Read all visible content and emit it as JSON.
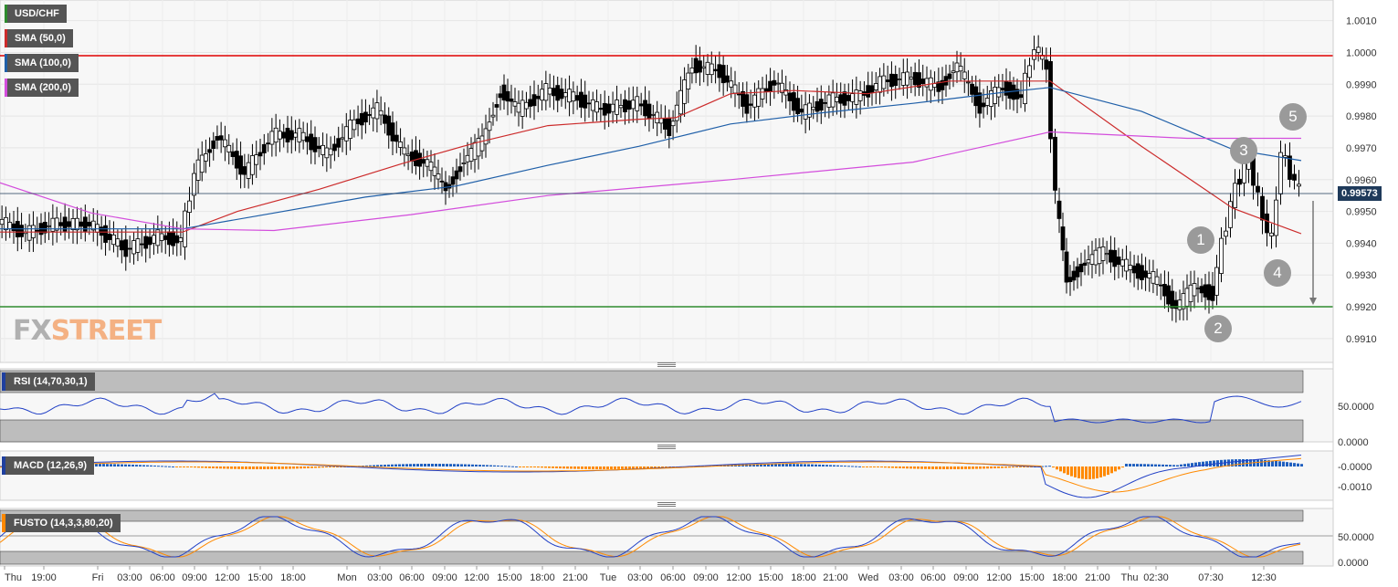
{
  "instrument": "USD/CHF",
  "legends": [
    {
      "label": "USD/CHF",
      "color": "#2e8b2e"
    },
    {
      "label": "SMA (50,0)",
      "color": "#cc2b2b"
    },
    {
      "label": "SMA (100,0)",
      "color": "#1f5fa8"
    },
    {
      "label": "SMA (200,0)",
      "color": "#d34ddc"
    }
  ],
  "current_price": "0.99573",
  "logo": {
    "part1": "FX",
    "part2": "STREET"
  },
  "annotations": [
    "1",
    "2",
    "3",
    "4",
    "5"
  ],
  "indicators": {
    "rsi": {
      "label": "RSI (14,70,30,1)",
      "color": "#1f3f9f",
      "ticks": [
        "50.0000",
        "0.0000"
      ]
    },
    "macd": {
      "label": "MACD (12,26,9)",
      "color": "#1f3f9f",
      "ticks": [
        "-0.0000",
        "-0.0010"
      ]
    },
    "fusto": {
      "label": "FUSTO (14,3,3,80,20)",
      "color": "#ff8800",
      "ticks": [
        "50.0000",
        "0.0000"
      ]
    }
  },
  "chart_data": {
    "type": "line",
    "title": "USD/CHF",
    "x_ticks": [
      "Thu",
      "19:00",
      "Fri",
      "03:00",
      "06:00",
      "09:00",
      "12:00",
      "15:00",
      "18:00",
      "Mon",
      "03:00",
      "06:00",
      "09:00",
      "12:00",
      "15:00",
      "18:00",
      "21:00",
      "Tue",
      "03:00",
      "06:00",
      "09:00",
      "12:00",
      "15:00",
      "18:00",
      "21:00",
      "Wed",
      "03:00",
      "06:00",
      "09:00",
      "12:00",
      "15:00",
      "18:00",
      "21:00",
      "Thu",
      "02:30",
      "07:30",
      "12:30"
    ],
    "y_ticks": [
      "1.0010",
      "1.0000",
      "0.9990",
      "0.9980",
      "0.9970",
      "0.9960",
      "0.9950",
      "0.9940",
      "0.9930",
      "0.9920",
      "0.9910"
    ],
    "ylim": [
      0.99025,
      1.00165
    ],
    "grid": true,
    "resistance": 0.9999,
    "support": 0.992,
    "close_points": [
      {
        "x": 0,
        "y": 0.9947
      },
      {
        "x": 30,
        "y": 0.9943
      },
      {
        "x": 60,
        "y": 0.9946
      },
      {
        "x": 100,
        "y": 0.9946
      },
      {
        "x": 140,
        "y": 0.9938
      },
      {
        "x": 175,
        "y": 0.9942
      },
      {
        "x": 200,
        "y": 0.9941
      },
      {
        "x": 215,
        "y": 0.9962
      },
      {
        "x": 240,
        "y": 0.9974
      },
      {
        "x": 270,
        "y": 0.9962
      },
      {
        "x": 300,
        "y": 0.9974
      },
      {
        "x": 330,
        "y": 0.9974
      },
      {
        "x": 360,
        "y": 0.9968
      },
      {
        "x": 390,
        "y": 0.9978
      },
      {
        "x": 415,
        "y": 0.9982
      },
      {
        "x": 445,
        "y": 0.9968
      },
      {
        "x": 470,
        "y": 0.9965
      },
      {
        "x": 490,
        "y": 0.9957
      },
      {
        "x": 510,
        "y": 0.9966
      },
      {
        "x": 530,
        "y": 0.9972
      },
      {
        "x": 550,
        "y": 0.9988
      },
      {
        "x": 570,
        "y": 0.9982
      },
      {
        "x": 600,
        "y": 0.9988
      },
      {
        "x": 630,
        "y": 0.9986
      },
      {
        "x": 660,
        "y": 0.9982
      },
      {
        "x": 700,
        "y": 0.9984
      },
      {
        "x": 735,
        "y": 0.9976
      },
      {
        "x": 760,
        "y": 0.9996
      },
      {
        "x": 790,
        "y": 0.9994
      },
      {
        "x": 820,
        "y": 0.9983
      },
      {
        "x": 850,
        "y": 0.9991
      },
      {
        "x": 880,
        "y": 0.9981
      },
      {
        "x": 910,
        "y": 0.9985
      },
      {
        "x": 940,
        "y": 0.9986
      },
      {
        "x": 970,
        "y": 0.9991
      },
      {
        "x": 1000,
        "y": 0.9992
      },
      {
        "x": 1030,
        "y": 0.9989
      },
      {
        "x": 1050,
        "y": 0.9996
      },
      {
        "x": 1075,
        "y": 0.9983
      },
      {
        "x": 1100,
        "y": 0.9989
      },
      {
        "x": 1120,
        "y": 0.9986
      },
      {
        "x": 1135,
        "y": 1.0002
      },
      {
        "x": 1148,
        "y": 0.9995
      },
      {
        "x": 1158,
        "y": 0.9955
      },
      {
        "x": 1170,
        "y": 0.9928
      },
      {
        "x": 1190,
        "y": 0.9934
      },
      {
        "x": 1210,
        "y": 0.9937
      },
      {
        "x": 1240,
        "y": 0.9932
      },
      {
        "x": 1265,
        "y": 0.9929
      },
      {
        "x": 1290,
        "y": 0.992
      },
      {
        "x": 1310,
        "y": 0.9926
      },
      {
        "x": 1330,
        "y": 0.9924
      },
      {
        "x": 1340,
        "y": 0.994
      },
      {
        "x": 1355,
        "y": 0.9958
      },
      {
        "x": 1370,
        "y": 0.9966
      },
      {
        "x": 1385,
        "y": 0.9948
      },
      {
        "x": 1395,
        "y": 0.9941
      },
      {
        "x": 1405,
        "y": 0.9969
      },
      {
        "x": 1415,
        "y": 0.9962
      },
      {
        "x": 1425,
        "y": 0.9957
      }
    ],
    "series": [
      {
        "name": "SMA (50,0)",
        "points": [
          {
            "x": 0,
            "y": 0.99435
          },
          {
            "x": 200,
            "y": 0.99435
          },
          {
            "x": 260,
            "y": 0.995
          },
          {
            "x": 350,
            "y": 0.9957
          },
          {
            "x": 440,
            "y": 0.9965
          },
          {
            "x": 520,
            "y": 0.99715
          },
          {
            "x": 600,
            "y": 0.9977
          },
          {
            "x": 700,
            "y": 0.9979
          },
          {
            "x": 740,
            "y": 0.99795
          },
          {
            "x": 800,
            "y": 0.9987
          },
          {
            "x": 870,
            "y": 0.9988
          },
          {
            "x": 950,
            "y": 0.9987
          },
          {
            "x": 1040,
            "y": 0.9991
          },
          {
            "x": 1150,
            "y": 0.9991
          },
          {
            "x": 1250,
            "y": 0.99705
          },
          {
            "x": 1350,
            "y": 0.9951
          },
          {
            "x": 1425,
            "y": 0.9943
          }
        ]
      },
      {
        "name": "SMA (100,0)",
        "points": [
          {
            "x": 0,
            "y": 0.99445
          },
          {
            "x": 200,
            "y": 0.99445
          },
          {
            "x": 280,
            "y": 0.99485
          },
          {
            "x": 400,
            "y": 0.99545
          },
          {
            "x": 500,
            "y": 0.9958
          },
          {
            "x": 600,
            "y": 0.99645
          },
          {
            "x": 700,
            "y": 0.99705
          },
          {
            "x": 800,
            "y": 0.99775
          },
          {
            "x": 900,
            "y": 0.9981
          },
          {
            "x": 1000,
            "y": 0.9984
          },
          {
            "x": 1100,
            "y": 0.99875
          },
          {
            "x": 1150,
            "y": 0.9989
          },
          {
            "x": 1250,
            "y": 0.99815
          },
          {
            "x": 1350,
            "y": 0.99695
          },
          {
            "x": 1425,
            "y": 0.9966
          }
        ]
      },
      {
        "name": "SMA (200,0)",
        "points": [
          {
            "x": 0,
            "y": 0.9959
          },
          {
            "x": 100,
            "y": 0.99495
          },
          {
            "x": 200,
            "y": 0.99445
          },
          {
            "x": 300,
            "y": 0.9944
          },
          {
            "x": 450,
            "y": 0.9949
          },
          {
            "x": 600,
            "y": 0.9955
          },
          {
            "x": 800,
            "y": 0.996
          },
          {
            "x": 1000,
            "y": 0.99655
          },
          {
            "x": 1150,
            "y": 0.9975
          },
          {
            "x": 1300,
            "y": 0.9973
          },
          {
            "x": 1425,
            "y": 0.9973
          }
        ]
      }
    ]
  }
}
